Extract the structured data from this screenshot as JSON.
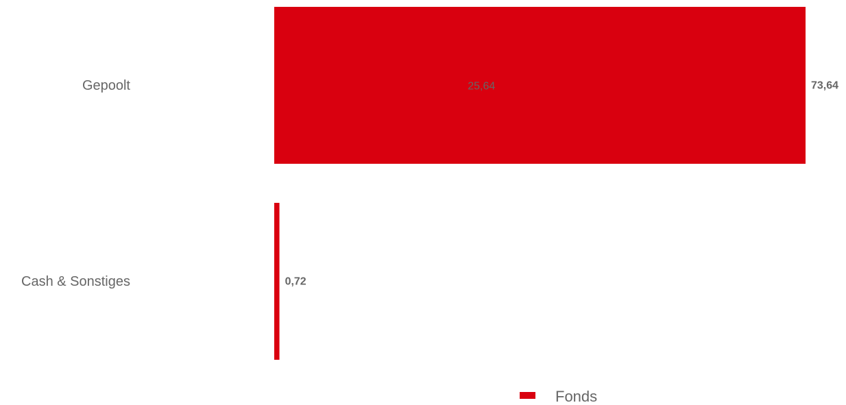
{
  "chart_data": {
    "type": "bar",
    "orientation": "horizontal",
    "categories": [
      "Gepoolt",
      "Cash & Sonstiges"
    ],
    "series": [
      {
        "name": "Fonds",
        "values": [
          73.64,
          0.72
        ],
        "value_labels": [
          "73,64",
          "0,72"
        ],
        "color": "#d9000f"
      }
    ],
    "inner_labels": [
      "25,64",
      ""
    ],
    "xlim": [
      0,
      73.64
    ],
    "grid": false,
    "legend": "bottom-center"
  }
}
